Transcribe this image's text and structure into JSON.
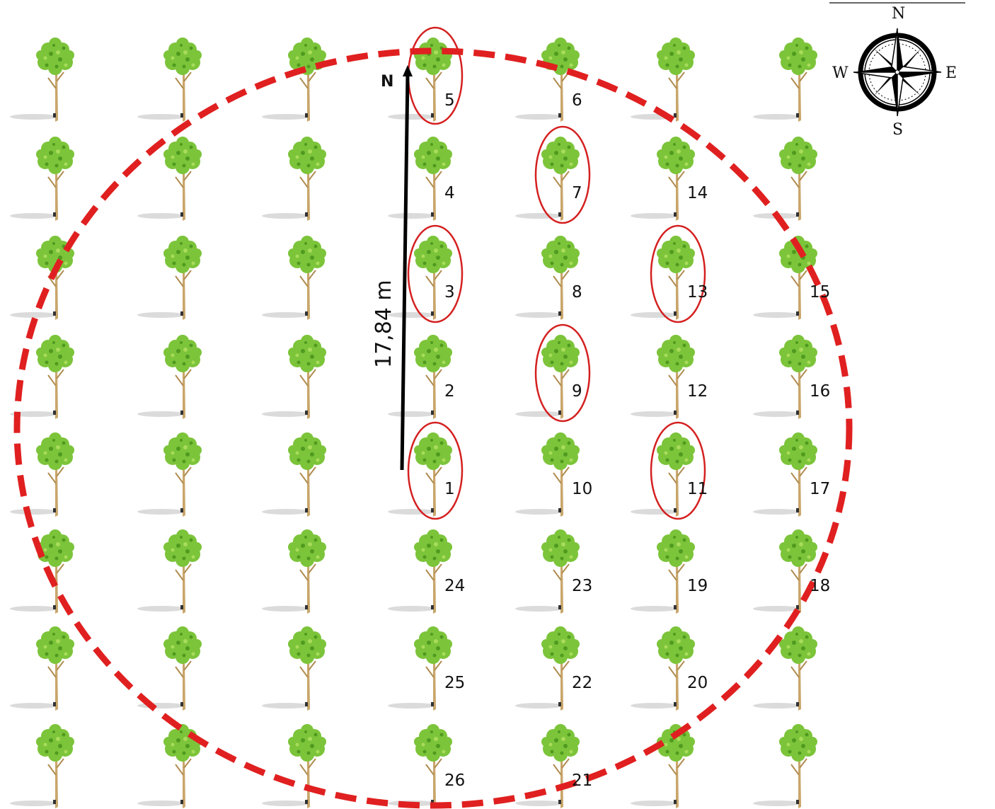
{
  "plot": {
    "radius_label": "17,84 m",
    "north_arrow_label": "N"
  },
  "compass": {
    "north": "N",
    "south": "S",
    "east": "E",
    "west": "W"
  },
  "colors": {
    "plot_boundary": "#e02020",
    "selection_ellipse": "#d42020",
    "foliage": "#7cc43a",
    "foliage_dark": "#4f9a1f",
    "trunk": "#c9a66b",
    "shadow": "#c8c8c8",
    "arrow": "#000000"
  },
  "grid": {
    "rows": 8,
    "cols": 7
  },
  "trees": [
    {
      "label": "5",
      "row": 0,
      "col": 3,
      "selected": true
    },
    {
      "label": "6",
      "row": 0,
      "col": 4,
      "selected": false
    },
    {
      "label": "4",
      "row": 1,
      "col": 3,
      "selected": false
    },
    {
      "label": "7",
      "row": 1,
      "col": 4,
      "selected": true
    },
    {
      "label": "14",
      "row": 1,
      "col": 5,
      "selected": false
    },
    {
      "label": "3",
      "row": 2,
      "col": 3,
      "selected": true
    },
    {
      "label": "8",
      "row": 2,
      "col": 4,
      "selected": false
    },
    {
      "label": "13",
      "row": 2,
      "col": 5,
      "selected": true
    },
    {
      "label": "15",
      "row": 2,
      "col": 6,
      "selected": false
    },
    {
      "label": "2",
      "row": 3,
      "col": 3,
      "selected": false
    },
    {
      "label": "9",
      "row": 3,
      "col": 4,
      "selected": true
    },
    {
      "label": "12",
      "row": 3,
      "col": 5,
      "selected": false
    },
    {
      "label": "16",
      "row": 3,
      "col": 6,
      "selected": false
    },
    {
      "label": "1",
      "row": 4,
      "col": 3,
      "selected": true
    },
    {
      "label": "10",
      "row": 4,
      "col": 4,
      "selected": false
    },
    {
      "label": "11",
      "row": 4,
      "col": 5,
      "selected": true
    },
    {
      "label": "17",
      "row": 4,
      "col": 6,
      "selected": false
    },
    {
      "label": "24",
      "row": 5,
      "col": 3,
      "selected": false
    },
    {
      "label": "23",
      "row": 5,
      "col": 4,
      "selected": false
    },
    {
      "label": "19",
      "row": 5,
      "col": 5,
      "selected": false
    },
    {
      "label": "18",
      "row": 5,
      "col": 6,
      "selected": false
    },
    {
      "label": "25",
      "row": 6,
      "col": 3,
      "selected": false
    },
    {
      "label": "22",
      "row": 6,
      "col": 4,
      "selected": false
    },
    {
      "label": "20",
      "row": 6,
      "col": 5,
      "selected": false
    },
    {
      "label": "26",
      "row": 7,
      "col": 3,
      "selected": false
    },
    {
      "label": "21",
      "row": 7,
      "col": 4,
      "selected": false
    }
  ]
}
